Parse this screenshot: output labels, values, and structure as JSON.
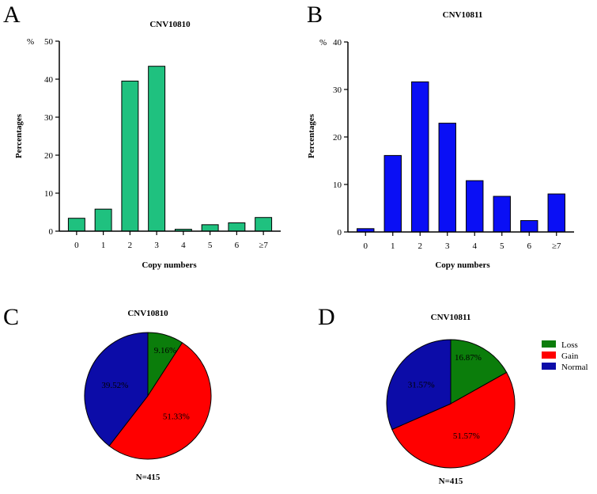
{
  "panel_letters": [
    "A",
    "B",
    "C",
    "D"
  ],
  "chart_data": [
    {
      "panel": "A",
      "type": "bar",
      "title": "CNV10810",
      "xlabel": "Copy numbers",
      "ylabel": "Percentages",
      "yunit": "%",
      "categories": [
        "0",
        "1",
        "2",
        "3",
        "4",
        "5",
        "6",
        "≥7"
      ],
      "values": [
        3.4,
        5.8,
        39.5,
        43.4,
        0.5,
        1.7,
        2.2,
        3.6
      ],
      "ylim": [
        0,
        50
      ],
      "yticks": [
        "0",
        "10",
        "20",
        "30",
        "40",
        "50"
      ],
      "color": "#1fc17f"
    },
    {
      "panel": "B",
      "type": "bar",
      "title": "CNV10811",
      "xlabel": "Copy numbers",
      "ylabel": "Percentages",
      "yunit": "%",
      "categories": [
        "0",
        "1",
        "2",
        "3",
        "4",
        "5",
        "6",
        "≥7"
      ],
      "values": [
        0.7,
        16.1,
        31.6,
        22.9,
        10.8,
        7.5,
        2.4,
        8.0
      ],
      "ylim": [
        0,
        40
      ],
      "yticks": [
        "0",
        "10",
        "20",
        "30",
        "40"
      ],
      "color": "#0a0ff5"
    },
    {
      "panel": "C",
      "type": "pie",
      "title": "CNV10810",
      "note": "N=415",
      "slices": [
        {
          "name": "Loss",
          "value": 9.16,
          "label": "9.16%",
          "color": "#0b7d0b"
        },
        {
          "name": "Gain",
          "value": 51.33,
          "label": "51.33%",
          "color": "#ff0000"
        },
        {
          "name": "Normal",
          "value": 39.52,
          "label": "39.52%",
          "color": "#0c0ca8"
        }
      ]
    },
    {
      "panel": "D",
      "type": "pie",
      "title": "CNV10811",
      "note": "N=415",
      "slices": [
        {
          "name": "Loss",
          "value": 16.87,
          "label": "16.87%",
          "color": "#0b7d0b"
        },
        {
          "name": "Gain",
          "value": 51.57,
          "label": "51.57%",
          "color": "#ff0000"
        },
        {
          "name": "Normal",
          "value": 31.57,
          "label": "31.57%",
          "color": "#0c0ca8"
        }
      ]
    }
  ],
  "legend": [
    {
      "name": "Loss",
      "color": "#0b7d0b"
    },
    {
      "name": "Gain",
      "color": "#ff0000"
    },
    {
      "name": "Normal",
      "color": "#0c0ca8"
    }
  ]
}
